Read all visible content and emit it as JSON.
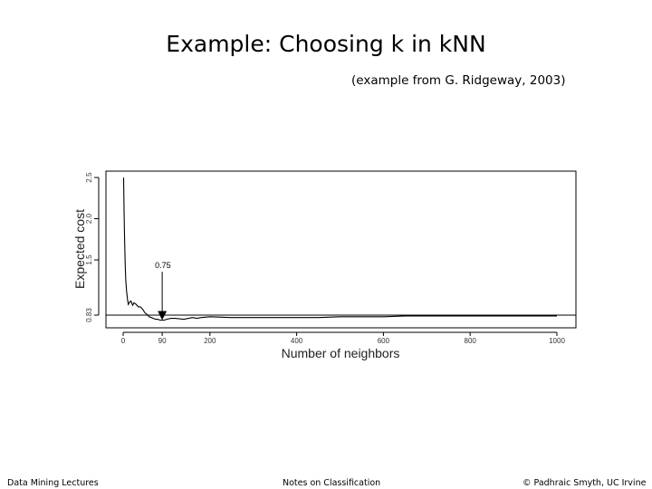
{
  "slide": {
    "title": "Example: Choosing k in kNN",
    "subtitle": "(example from G. Ridgeway, 2003)"
  },
  "footer": {
    "left": "Data Mining Lectures",
    "center": "Notes on Classification",
    "right": "© Padhraic Smyth, UC Irvine"
  },
  "chart_data": {
    "type": "line",
    "title": "",
    "xlabel": "Number of neighbors",
    "ylabel": "Expected cost",
    "xlim": [
      -30,
      1040
    ],
    "ylim": [
      0.75,
      2.55
    ],
    "x_ticks": [
      {
        "value": 0,
        "label": "0"
      },
      {
        "value": 90,
        "label": "90"
      },
      {
        "value": 200,
        "label": "200"
      },
      {
        "value": 400,
        "label": "400"
      },
      {
        "value": 600,
        "label": "600"
      },
      {
        "value": 800,
        "label": "800"
      },
      {
        "value": 1000,
        "label": "1000"
      }
    ],
    "y_ticks": [
      {
        "value": 0.83,
        "label": "0.83"
      },
      {
        "value": 1.5,
        "label": "1.5"
      },
      {
        "value": 2.0,
        "label": "2.0"
      },
      {
        "value": 2.5,
        "label": "2.5"
      }
    ],
    "reference_line": {
      "y": 0.83
    },
    "annotation": {
      "label": "0.75",
      "x": 90,
      "y": 0.77
    },
    "series": [
      {
        "x": [
          1,
          2,
          3,
          4,
          5,
          6,
          8,
          10,
          12,
          15,
          18,
          22,
          25,
          30,
          35,
          40,
          45,
          50,
          55,
          60,
          65,
          70,
          75,
          80,
          85,
          90,
          95,
          100,
          110,
          120,
          140,
          160,
          170,
          180,
          200,
          250,
          300,
          350,
          400,
          450,
          500,
          600,
          650,
          700,
          800,
          900,
          1000
        ],
        "y": [
          2.5,
          2.1,
          1.85,
          1.6,
          1.4,
          1.25,
          1.12,
          1.02,
          0.96,
          0.99,
          1.0,
          0.95,
          0.98,
          0.96,
          0.93,
          0.93,
          0.9,
          0.86,
          0.84,
          0.81,
          0.8,
          0.79,
          0.78,
          0.78,
          0.77,
          0.77,
          0.77,
          0.78,
          0.79,
          0.79,
          0.78,
          0.8,
          0.79,
          0.8,
          0.81,
          0.8,
          0.8,
          0.8,
          0.8,
          0.8,
          0.81,
          0.81,
          0.82,
          0.82,
          0.82,
          0.82,
          0.82
        ]
      }
    ]
  }
}
